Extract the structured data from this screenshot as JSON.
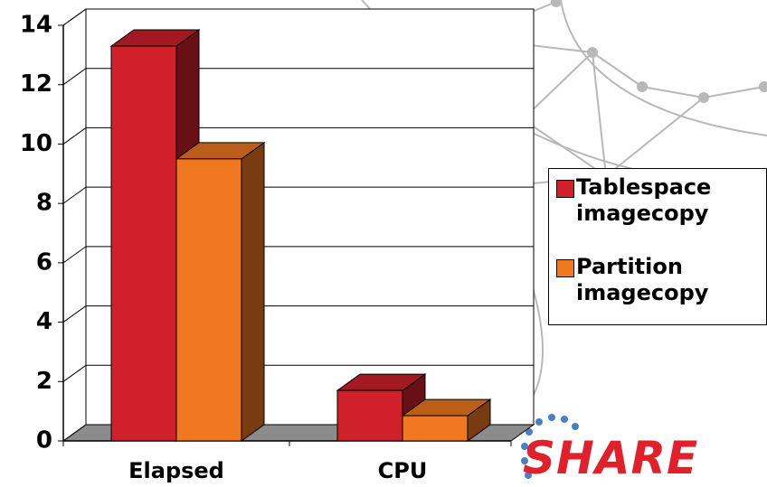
{
  "chart_data": {
    "type": "bar3d",
    "categories": [
      "Elapsed",
      "CPU"
    ],
    "series": [
      {
        "name": "Tablespace imagecopy",
        "color": "#d0202a",
        "values": [
          13.3,
          1.7
        ]
      },
      {
        "name": "Partition imagecopy",
        "color": "#f07820",
        "values": [
          9.5,
          0.85
        ]
      }
    ],
    "ylim": [
      0,
      14
    ],
    "yticks": [
      0,
      2,
      4,
      6,
      8,
      10,
      12,
      14
    ],
    "grid": true,
    "legend": "right"
  },
  "logo": "SHARE"
}
